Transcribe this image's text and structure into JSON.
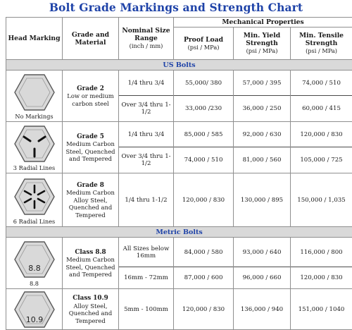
{
  "title": "Bolt Grade Markings and Strength Chart",
  "headers": {
    "head_marking": "Head Marking",
    "grade_material": "Grade and Material",
    "nominal_size": "Nominal Size Range",
    "nominal_units": "(inch / mm)",
    "mechanical": "Mechanical Properties",
    "proof_load": "Proof Load",
    "proof_units": "(psi / MPa)",
    "yield": "Min. Yield Strength",
    "yield_units": "(psi / MPa)",
    "tensile": "Min. Tensile Strength",
    "tensile_units": "(psi / MPa)"
  },
  "sections": {
    "us": "US Bolts",
    "metric": "Metric Bolts"
  },
  "rows": [
    {
      "marking": "No Markings",
      "head_icon": "plain-hex-head-icon",
      "grade": "Grade 2",
      "material": "Low or medium carbon steel",
      "sizes": [
        "1/4 thru 3/4",
        "Over 3/4 thru 1-1/2"
      ],
      "proof": [
        "55,000/ 380",
        "33,000 /230"
      ],
      "yield": [
        "57,000 / 395",
        "36,000 / 250"
      ],
      "tensile": [
        "74,000 / 510",
        "60,000 / 415"
      ]
    },
    {
      "marking": "3 Radial Lines",
      "head_icon": "three-radial-lines-hex-head-icon",
      "grade": "Grade 5",
      "material": "Medium Carbon Steel, Quenched and Tempered",
      "sizes": [
        "1/4 thru 3/4",
        "Over 3/4 thru 1-1/2"
      ],
      "proof": [
        "85,000 / 585",
        "74,000 / 510"
      ],
      "yield": [
        "92,000 / 630",
        "81,000 / 560"
      ],
      "tensile": [
        "120,000 / 830",
        "105,000 / 725"
      ]
    },
    {
      "marking": "6 Radial Lines",
      "head_icon": "six-radial-lines-hex-head-icon",
      "grade": "Grade 8",
      "material": "Medium Carbon Alloy Steel, Quenched and Tempered",
      "sizes": [
        "1/4 thru 1-1/2"
      ],
      "proof": [
        "120,000 / 830"
      ],
      "yield": [
        "130,000 / 895"
      ],
      "tensile": [
        "150,000 / 1,035"
      ]
    },
    {
      "marking": "8.8",
      "head_icon": "class-8.8-hex-head-icon",
      "head_text": "8.8",
      "grade": "Class 8.8",
      "material": "Medium Carbon Steel, Quenched and Tempered",
      "sizes": [
        "All Sizes below 16mm",
        "16mm - 72mm"
      ],
      "proof": [
        "84,000 / 580",
        "87,000 / 600"
      ],
      "yield": [
        "93,000 / 640",
        "96,000 / 660"
      ],
      "tensile": [
        "116,000 / 800",
        "120,000 / 830"
      ]
    },
    {
      "marking": "",
      "head_icon": "class-10.9-hex-head-icon",
      "head_text": "10.9",
      "grade": "Class 10.9",
      "material": "Alloy Steel, Quenched and Tempered",
      "sizes": [
        "5mm - 100mm"
      ],
      "proof": [
        "120,000 / 830"
      ],
      "yield": [
        "136,000 / 940"
      ],
      "tensile": [
        "151,000 / 1040"
      ]
    }
  ]
}
